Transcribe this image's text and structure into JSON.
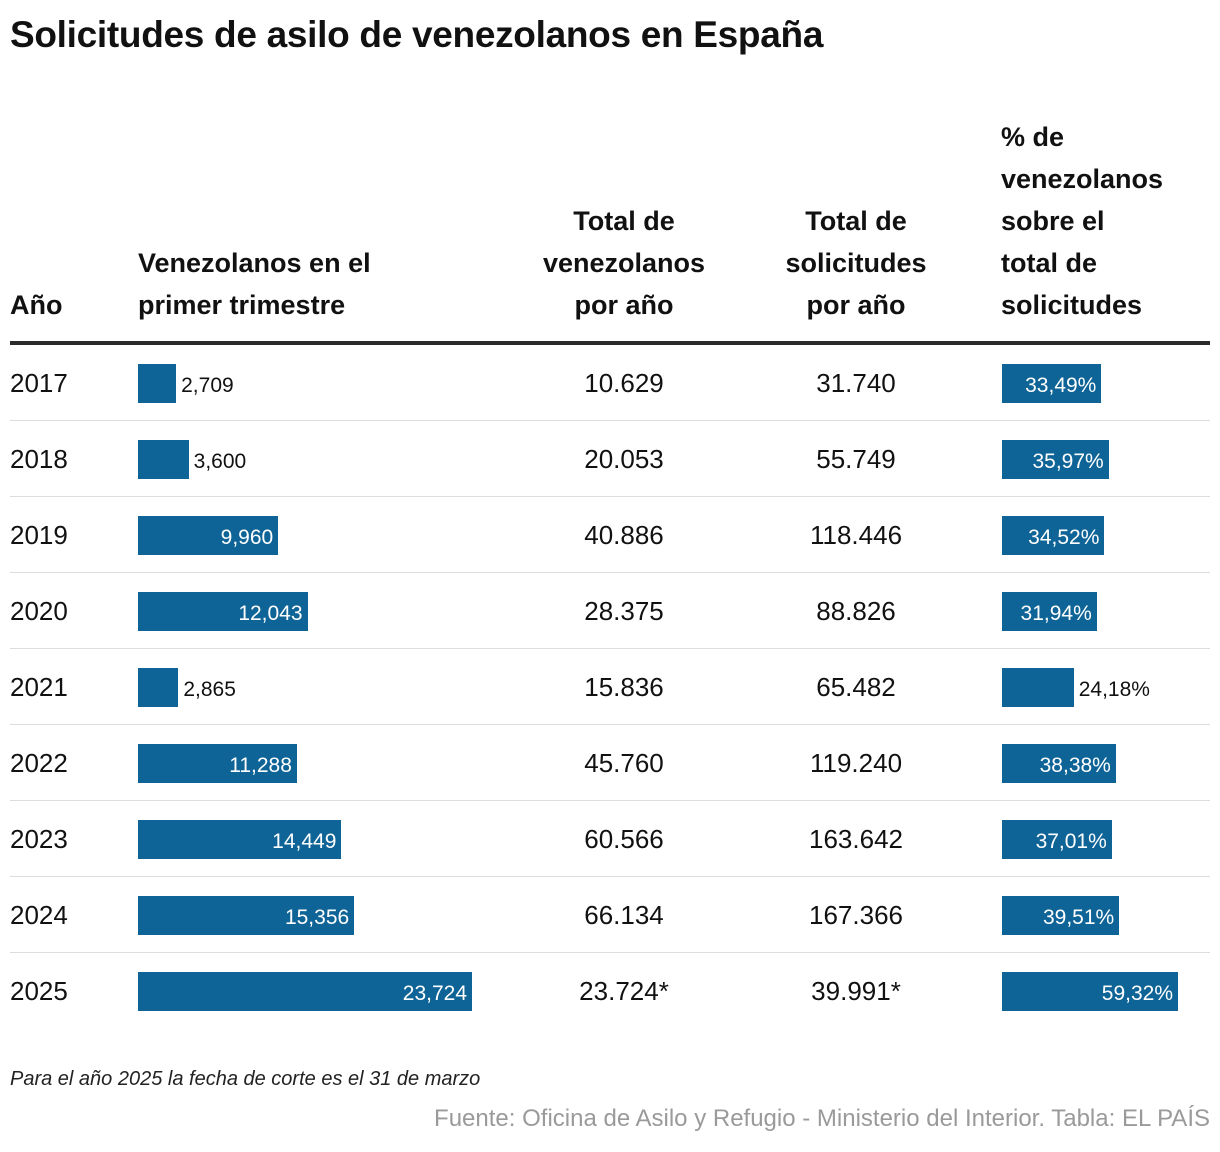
{
  "title": "Solicitudes de asilo de venezolanos en España",
  "headers": {
    "year": [
      "Año"
    ],
    "q1": [
      "Venezolanos en el",
      "primer trimestre"
    ],
    "total_venezuelans": [
      "Total de",
      "venezolanos",
      "por año"
    ],
    "total_requests": [
      "Total de",
      "solicitudes",
      "por año"
    ],
    "pct": [
      "% de",
      "venezolanos",
      "sobre el",
      "total de",
      "solicitudes"
    ]
  },
  "note": "Para el año 2025 la fecha de corte es el 31 de marzo",
  "source": "Fuente: Oficina de Asilo y Refugio - Ministerio del Interior. Tabla: EL PAÍS",
  "colors": {
    "bar": "#0f6497",
    "text": "#111111",
    "source": "#9a9a9a",
    "rule": "#2b2b2b",
    "separator": "#dddddd"
  },
  "chart_data": {
    "type": "table",
    "title": "Solicitudes de asilo de venezolanos en España",
    "columns": [
      "Año",
      "Venezolanos en el primer trimestre",
      "Total de venezolanos por año",
      "Total de solicitudes por año",
      "% de venezolanos sobre el total de solicitudes"
    ],
    "rows": [
      {
        "year": "2017",
        "q1": 2709,
        "q1_label": "2,709",
        "total_venezuelans": "10.629",
        "total_requests": "31.740",
        "pct": 33.49,
        "pct_label": "33,49%"
      },
      {
        "year": "2018",
        "q1": 3600,
        "q1_label": "3,600",
        "total_venezuelans": "20.053",
        "total_requests": "55.749",
        "pct": 35.97,
        "pct_label": "35,97%"
      },
      {
        "year": "2019",
        "q1": 9960,
        "q1_label": "9,960",
        "total_venezuelans": "40.886",
        "total_requests": "118.446",
        "pct": 34.52,
        "pct_label": "34,52%"
      },
      {
        "year": "2020",
        "q1": 12043,
        "q1_label": "12,043",
        "total_venezuelans": "28.375",
        "total_requests": "88.826",
        "pct": 31.94,
        "pct_label": "31,94%"
      },
      {
        "year": "2021",
        "q1": 2865,
        "q1_label": "2,865",
        "total_venezuelans": "15.836",
        "total_requests": "65.482",
        "pct": 24.18,
        "pct_label": "24,18%"
      },
      {
        "year": "2022",
        "q1": 11288,
        "q1_label": "11,288",
        "total_venezuelans": "45.760",
        "total_requests": "119.240",
        "pct": 38.38,
        "pct_label": "38,38%"
      },
      {
        "year": "2023",
        "q1": 14449,
        "q1_label": "14,449",
        "total_venezuelans": "60.566",
        "total_requests": "163.642",
        "pct": 37.01,
        "pct_label": "37,01%"
      },
      {
        "year": "2024",
        "q1": 15356,
        "q1_label": "15,356",
        "total_venezuelans": "66.134",
        "total_requests": "167.366",
        "pct": 39.51,
        "pct_label": "39,51%"
      },
      {
        "year": "2025",
        "q1": 23724,
        "q1_label": "23,724",
        "total_venezuelans": "23.724*",
        "total_requests": "39.991*",
        "pct": 59.32,
        "pct_label": "59,32%"
      }
    ],
    "q1_max": 23724,
    "pct_max": 59.32
  }
}
